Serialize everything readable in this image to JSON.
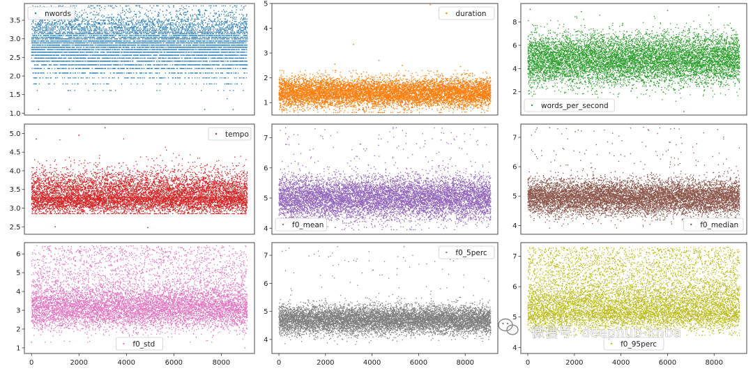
{
  "figure": {
    "background": "#ffffff",
    "axes_frame_color": "#333333",
    "marker": "dot"
  },
  "watermark": {
    "text": "微信号: deephub-imba",
    "icon": "wechat-icon"
  },
  "chart_data": [
    {
      "type": "scatter",
      "legend": "nwords",
      "legend_position": "upper left",
      "color": "#1f77b4",
      "xlim": [
        -300,
        9400
      ],
      "ylim": [
        0.95,
        3.95
      ],
      "x_ticks": [],
      "y_ticks": [
        "1.0",
        "1.5",
        "2.0",
        "2.5",
        "3.0",
        "3.5"
      ],
      "n_points": 9100,
      "distribution": {
        "kind": "discrete",
        "levels": [
          1.1,
          1.39,
          1.61,
          1.79,
          1.95,
          2.08,
          2.2,
          2.3,
          2.4,
          2.48,
          2.56,
          2.64,
          2.71,
          2.77,
          2.83,
          2.89,
          2.94,
          3.0,
          3.04,
          3.09,
          3.14,
          3.18,
          3.22,
          3.26,
          3.3,
          3.33,
          3.37,
          3.4,
          3.43,
          3.47,
          3.5,
          3.53,
          3.56,
          3.58,
          3.61,
          3.64,
          3.66,
          3.69,
          3.71,
          3.74,
          3.76,
          3.78,
          3.81,
          3.83,
          3.85,
          3.87,
          3.89
        ],
        "mean": 2.85,
        "std": 0.42,
        "min": 1.1,
        "max": 3.9
      },
      "outliers": [
        [
          1600,
          1.1
        ],
        [
          7300,
          1.1
        ],
        [
          8500,
          1.1
        ],
        [
          300,
          1.1
        ]
      ]
    },
    {
      "type": "scatter",
      "legend": "duration",
      "legend_position": "upper right",
      "color": "#ff7f0e",
      "xlim": [
        -300,
        9400
      ],
      "ylim": [
        0.5,
        5.0
      ],
      "x_ticks": [],
      "y_ticks": [
        "1",
        "2",
        "3",
        "4",
        "5"
      ],
      "n_points": 9100,
      "distribution": {
        "kind": "normal",
        "mean": 1.4,
        "std": 0.3,
        "min": 0.6,
        "max": 2.3
      },
      "outliers": [
        [
          6500,
          4.95
        ],
        [
          3200,
          3.35
        ],
        [
          4300,
          2.7
        ],
        [
          2400,
          2.55
        ],
        [
          5300,
          2.5
        ],
        [
          7800,
          2.45
        ]
      ]
    },
    {
      "type": "scatter",
      "legend": "words_per_second",
      "legend_position": "lower left",
      "color": "#2ca02c",
      "xlim": [
        -300,
        9400
      ],
      "ylim": [
        0.0,
        9.6
      ],
      "x_ticks": [],
      "y_ticks": [
        "2",
        "4",
        "6",
        "8"
      ],
      "n_points": 9100,
      "distribution": {
        "kind": "normal",
        "mean": 4.8,
        "std": 1.1,
        "min": 0.5,
        "max": 8.6
      },
      "outliers": [
        [
          100,
          9.1
        ],
        [
          6000,
          9.0
        ],
        [
          8200,
          9.3
        ],
        [
          6700,
          0.3
        ],
        [
          2300,
          8.9
        ]
      ]
    },
    {
      "type": "scatter",
      "legend": "tempo",
      "legend_position": "upper right",
      "color": "#d62728",
      "xlim": [
        -300,
        9400
      ],
      "ylim": [
        2.3,
        5.25
      ],
      "x_ticks": [],
      "y_ticks": [
        "2.5",
        "3.0",
        "3.5",
        "4.0",
        "4.5",
        "5.0"
      ],
      "n_points": 9100,
      "distribution": {
        "kind": "skewed",
        "mean": 3.3,
        "std": 0.22,
        "min": 2.85,
        "max": 4.85
      },
      "outliers": [
        [
          3100,
          5.15
        ],
        [
          200,
          4.85
        ],
        [
          1000,
          2.5
        ],
        [
          4900,
          2.48
        ],
        [
          2000,
          4.95
        ]
      ]
    },
    {
      "type": "scatter",
      "legend": "f0_mean",
      "legend_position": "lower left",
      "color": "#9467bd",
      "xlim": [
        -300,
        9400
      ],
      "ylim": [
        3.8,
        7.45
      ],
      "x_ticks": [],
      "y_ticks": [
        "4",
        "5",
        "6",
        "7"
      ],
      "n_points": 9100,
      "distribution": {
        "kind": "normal_high_tail",
        "mean": 5.0,
        "std": 0.35,
        "min": 3.95,
        "max": 6.5,
        "tail_fraction": 0.012,
        "tail_range": [
          6.0,
          7.35
        ]
      },
      "outliers": []
    },
    {
      "type": "scatter",
      "legend": "f0_median",
      "legend_position": "lower right",
      "color": "#8c564b",
      "xlim": [
        -300,
        9400
      ],
      "ylim": [
        3.7,
        7.45
      ],
      "x_ticks": [],
      "y_ticks": [
        "4",
        "5",
        "6",
        "7"
      ],
      "n_points": 9100,
      "distribution": {
        "kind": "normal_high_tail",
        "mean": 4.95,
        "std": 0.3,
        "min": 3.9,
        "max": 6.2,
        "tail_fraction": 0.01,
        "tail_range": [
          6.0,
          7.35
        ]
      },
      "outliers": []
    },
    {
      "type": "scatter",
      "legend": "f0_std",
      "legend_position": "lower center",
      "color": "#e377c2",
      "xlim": [
        -300,
        9400
      ],
      "ylim": [
        0.7,
        6.6
      ],
      "x_ticks": [
        "0",
        "2000",
        "4000",
        "6000",
        "8000"
      ],
      "x_tick_values": [
        0,
        2000,
        4000,
        6000,
        8000
      ],
      "y_ticks": [
        "1",
        "2",
        "3",
        "4",
        "5",
        "6"
      ],
      "n_points": 9100,
      "distribution": {
        "kind": "bimodal",
        "mean": 3.1,
        "std": 0.55,
        "min": 1.3,
        "max": 6.4,
        "tail_fraction": 0.2,
        "tail_range": [
          3.8,
          6.45
        ]
      },
      "outliers": [
        [
          0,
          1.3
        ],
        [
          9000,
          1.0
        ]
      ]
    },
    {
      "type": "scatter",
      "legend": "f0_5perc",
      "legend_position": "upper right",
      "color": "#7f7f7f",
      "xlim": [
        -300,
        9400
      ],
      "ylim": [
        3.5,
        7.45
      ],
      "x_ticks": [
        "0",
        "2000",
        "4000",
        "6000",
        "8000"
      ],
      "x_tick_values": [
        0,
        2000,
        4000,
        6000,
        8000
      ],
      "y_ticks": [
        "4",
        "5",
        "6",
        "7"
      ],
      "n_points": 9100,
      "distribution": {
        "kind": "normal_high_tail",
        "mean": 4.7,
        "std": 0.25,
        "min": 3.7,
        "max": 5.6,
        "tail_fraction": 0.008,
        "tail_range": [
          5.6,
          7.35
        ]
      },
      "outliers": []
    },
    {
      "type": "scatter",
      "legend": "f0_95perc",
      "legend_position": "lower center",
      "color": "#bcbd22",
      "xlim": [
        -300,
        9400
      ],
      "ylim": [
        3.8,
        7.45
      ],
      "x_ticks": [
        "0",
        "2000",
        "4000",
        "6000",
        "8000"
      ],
      "x_tick_values": [
        0,
        2000,
        4000,
        6000,
        8000
      ],
      "y_ticks": [
        "4",
        "5",
        "6",
        "7"
      ],
      "n_points": 9100,
      "distribution": {
        "kind": "skewed_high",
        "mean": 5.2,
        "std": 0.35,
        "min": 4.4,
        "max": 7.3,
        "tail_fraction": 0.3,
        "tail_range": [
          5.5,
          7.3
        ]
      },
      "outliers": []
    }
  ]
}
